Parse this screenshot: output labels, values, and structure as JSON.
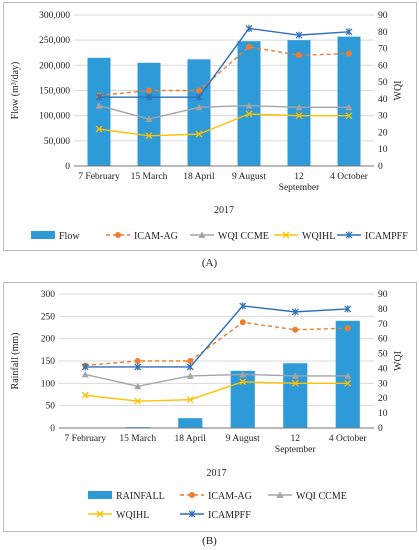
{
  "figures": [
    {
      "caption": "(A)"
    },
    {
      "caption": "(B)"
    }
  ],
  "chart_data": [
    {
      "type": "bar",
      "categories": [
        "7 February",
        "15 March",
        "18 April",
        "9 August",
        "12 September",
        "4 October"
      ],
      "group_label": "2017",
      "ylabel": "Flow (m³/day)",
      "y2label": "WQI",
      "ylim": [
        0,
        300000
      ],
      "y2lim": [
        0,
        90
      ],
      "yticks": [
        0,
        50000,
        100000,
        150000,
        200000,
        250000,
        300000
      ],
      "ytick_labels": [
        "0",
        "50,000",
        "100,000",
        "150,000",
        "200,000",
        "250,000",
        "300,000"
      ],
      "y2ticks": [
        0,
        10,
        20,
        30,
        40,
        50,
        60,
        70,
        80,
        90
      ],
      "series": [
        {
          "name": "Flow",
          "kind": "bar",
          "axis": "left",
          "color": "#2e9bd8",
          "values": [
            215000,
            205000,
            212000,
            248000,
            250000,
            257000
          ]
        },
        {
          "name": "ICAM-AG",
          "kind": "line",
          "axis": "right",
          "color": "#ed7d31",
          "dash": "dashed",
          "marker": "circle",
          "values": [
            42,
            45,
            45,
            71,
            66,
            67
          ]
        },
        {
          "name": "WQI CCME",
          "kind": "line",
          "axis": "right",
          "color": "#a5a5a5",
          "dash": "solid",
          "marker": "triangle",
          "values": [
            36,
            28,
            35,
            36,
            35,
            35
          ]
        },
        {
          "name": "WQIHL",
          "kind": "line",
          "axis": "right",
          "color": "#ffc000",
          "dash": "solid",
          "marker": "x",
          "values": [
            22,
            18,
            19,
            31,
            30,
            30
          ]
        },
        {
          "name": "ICAMPFF",
          "kind": "line",
          "axis": "right",
          "color": "#2f6eba",
          "dash": "solid",
          "marker": "star",
          "values": [
            41,
            41,
            41,
            82,
            78,
            80
          ]
        }
      ],
      "legend_position": "bottom",
      "grid": true
    },
    {
      "type": "bar",
      "categories": [
        "7 February",
        "15 March",
        "18 April",
        "9 August",
        "12 September",
        "4 October"
      ],
      "group_label": "2017",
      "ylabel": "Rainfall (mm)",
      "y2label": "WQI",
      "ylim": [
        0,
        300
      ],
      "y2lim": [
        0,
        90
      ],
      "yticks": [
        0,
        50,
        100,
        150,
        200,
        250,
        300
      ],
      "ytick_labels": [
        "0",
        "50",
        "100",
        "150",
        "200",
        "250",
        "300"
      ],
      "y2ticks": [
        0,
        10,
        20,
        30,
        40,
        50,
        60,
        70,
        80,
        90
      ],
      "series": [
        {
          "name": "RAINFALL",
          "kind": "bar",
          "axis": "left",
          "color": "#2e9bd8",
          "values": [
            1,
            2,
            22,
            128,
            145,
            240
          ]
        },
        {
          "name": "ICAM-AG",
          "kind": "line",
          "axis": "right",
          "color": "#ed7d31",
          "dash": "dashed",
          "marker": "circle",
          "values": [
            42,
            45,
            45,
            71,
            66,
            67
          ]
        },
        {
          "name": "WQI CCME",
          "kind": "line",
          "axis": "right",
          "color": "#a5a5a5",
          "dash": "solid",
          "marker": "triangle",
          "values": [
            36,
            28,
            35,
            36,
            35,
            35
          ]
        },
        {
          "name": "WQIHL",
          "kind": "line",
          "axis": "right",
          "color": "#ffc000",
          "dash": "solid",
          "marker": "x",
          "values": [
            22,
            18,
            19,
            31,
            30,
            30
          ]
        },
        {
          "name": "ICAMPFF",
          "kind": "line",
          "axis": "right",
          "color": "#2f6eba",
          "dash": "solid",
          "marker": "star",
          "values": [
            41,
            41,
            41,
            82,
            78,
            80
          ]
        }
      ],
      "legend_position": "bottom",
      "grid": true
    }
  ]
}
